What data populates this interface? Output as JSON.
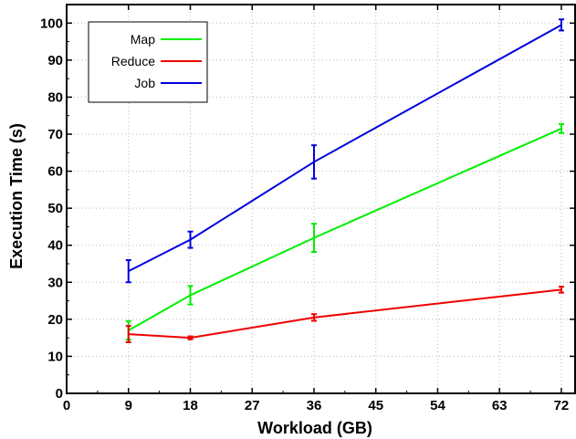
{
  "chart_data": {
    "type": "line",
    "xlabel": "Workload (GB)",
    "ylabel": "Execution Time (s)",
    "xlim": [
      0,
      74
    ],
    "ylim": [
      0,
      105
    ],
    "xticks": [
      0,
      9,
      18,
      27,
      36,
      45,
      54,
      63,
      72
    ],
    "yticks": [
      0,
      10,
      20,
      30,
      40,
      50,
      60,
      70,
      80,
      90,
      100
    ],
    "grid": true,
    "legend_position": "top-left",
    "x": [
      9,
      18,
      36,
      72
    ],
    "series": [
      {
        "name": "Map",
        "color": "#00ee00",
        "values": [
          17,
          26.5,
          42,
          71.5
        ],
        "errors": [
          2.5,
          2.5,
          3.8,
          1.2
        ]
      },
      {
        "name": "Reduce",
        "color": "#ee0000",
        "values": [
          16,
          15,
          20.5,
          28
        ],
        "errors": [
          2.2,
          0.4,
          0.9,
          0.8
        ]
      },
      {
        "name": "Job",
        "color": "#0000dd",
        "values": [
          33,
          41.5,
          62.5,
          99.5
        ],
        "errors": [
          3,
          2.2,
          4.5,
          1.5
        ]
      }
    ]
  }
}
